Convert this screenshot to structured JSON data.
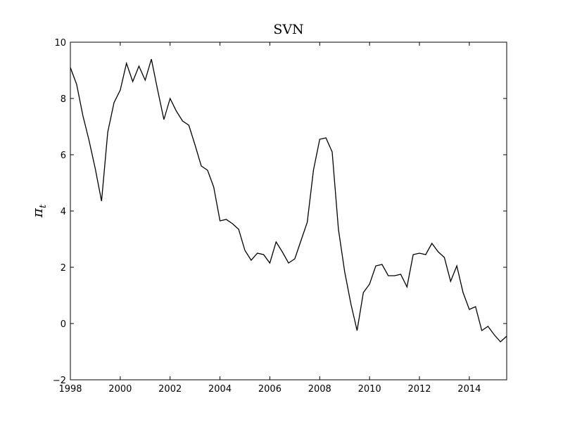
{
  "chart_data": {
    "type": "line",
    "title": "SVN",
    "xlabel": "",
    "ylabel": "π",
    "ylabel_subscript": "t",
    "xlim": [
      1998,
      2015.5
    ],
    "ylim": [
      -2,
      10
    ],
    "xticks": [
      1998,
      2000,
      2002,
      2004,
      2006,
      2008,
      2010,
      2012,
      2014
    ],
    "xtick_labels": [
      "1998",
      "2000",
      "2002",
      "2004",
      "2006",
      "2008",
      "2010",
      "2012",
      "2014"
    ],
    "yticks": [
      -2,
      0,
      2,
      4,
      6,
      8,
      10
    ],
    "ytick_labels": [
      "−2",
      "0",
      "2",
      "4",
      "6",
      "8",
      "10"
    ],
    "grid": false,
    "line_color": "#000000",
    "series": [
      {
        "x": [
          1998.0,
          1998.25,
          1998.5,
          1998.75,
          1999.0,
          1999.25,
          1999.5,
          1999.75,
          2000.0,
          2000.25,
          2000.5,
          2000.75,
          2001.0,
          2001.25,
          2001.5,
          2001.75,
          2002.0,
          2002.25,
          2002.5,
          2002.75,
          2003.0,
          2003.25,
          2003.5,
          2003.75,
          2004.0,
          2004.25,
          2004.5,
          2004.75,
          2005.0,
          2005.25,
          2005.5,
          2005.75,
          2006.0,
          2006.25,
          2006.5,
          2006.75,
          2007.0,
          2007.25,
          2007.5,
          2007.75,
          2008.0,
          2008.25,
          2008.5,
          2008.75,
          2009.0,
          2009.25,
          2009.5,
          2009.75,
          2010.0,
          2010.25,
          2010.5,
          2010.75,
          2011.0,
          2011.25,
          2011.5,
          2011.75,
          2012.0,
          2012.25,
          2012.5,
          2012.75,
          2013.0,
          2013.25,
          2013.5,
          2013.75,
          2014.0,
          2014.25,
          2014.5,
          2014.75,
          2015.0,
          2015.25,
          2015.5
        ],
        "values": [
          9.1,
          8.5,
          7.4,
          6.5,
          5.5,
          4.35,
          6.8,
          7.85,
          8.3,
          9.25,
          8.6,
          9.15,
          8.65,
          9.4,
          8.3,
          7.25,
          8.0,
          7.55,
          7.2,
          7.05,
          6.35,
          5.6,
          5.45,
          4.85,
          3.65,
          3.7,
          3.55,
          3.35,
          2.6,
          2.25,
          2.5,
          2.45,
          2.15,
          2.9,
          2.55,
          2.15,
          2.3,
          2.95,
          3.6,
          5.45,
          6.55,
          6.6,
          6.1,
          3.35,
          1.85,
          0.7,
          -0.25,
          1.1,
          1.4,
          2.05,
          2.1,
          1.7,
          1.7,
          1.75,
          1.3,
          2.45,
          2.5,
          2.45,
          2.85,
          2.55,
          2.35,
          1.5,
          2.05,
          1.1,
          0.5,
          0.6,
          -0.25,
          -0.1,
          -0.4,
          -0.65,
          -0.45
        ]
      }
    ]
  }
}
